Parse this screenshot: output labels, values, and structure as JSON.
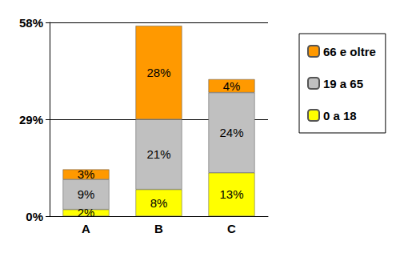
{
  "chart_data": {
    "type": "bar",
    "stacked": true,
    "data_labels": true,
    "grid": true,
    "legend": "right",
    "categories": [
      "A",
      "B",
      "C"
    ],
    "series": [
      {
        "name": "0 a 18",
        "color": "#FFFF00",
        "values": [
          2,
          8,
          13
        ],
        "value_labels": [
          "2%",
          "8%",
          "13%"
        ]
      },
      {
        "name": "19 a 65",
        "color": "#C0C0C0",
        "values": [
          9,
          21,
          24
        ],
        "value_labels": [
          "9%",
          "21%",
          "24%"
        ]
      },
      {
        "name": "66 e oltre",
        "color": "#FF9900",
        "values": [
          3,
          28,
          4
        ],
        "value_labels": [
          "3%",
          "28%",
          "4%"
        ]
      }
    ],
    "ylim": [
      0,
      58
    ],
    "yticks": [
      {
        "value": 0,
        "label": "0%"
      },
      {
        "value": 29,
        "label": "29%"
      },
      {
        "value": 58,
        "label": "58%"
      }
    ]
  }
}
